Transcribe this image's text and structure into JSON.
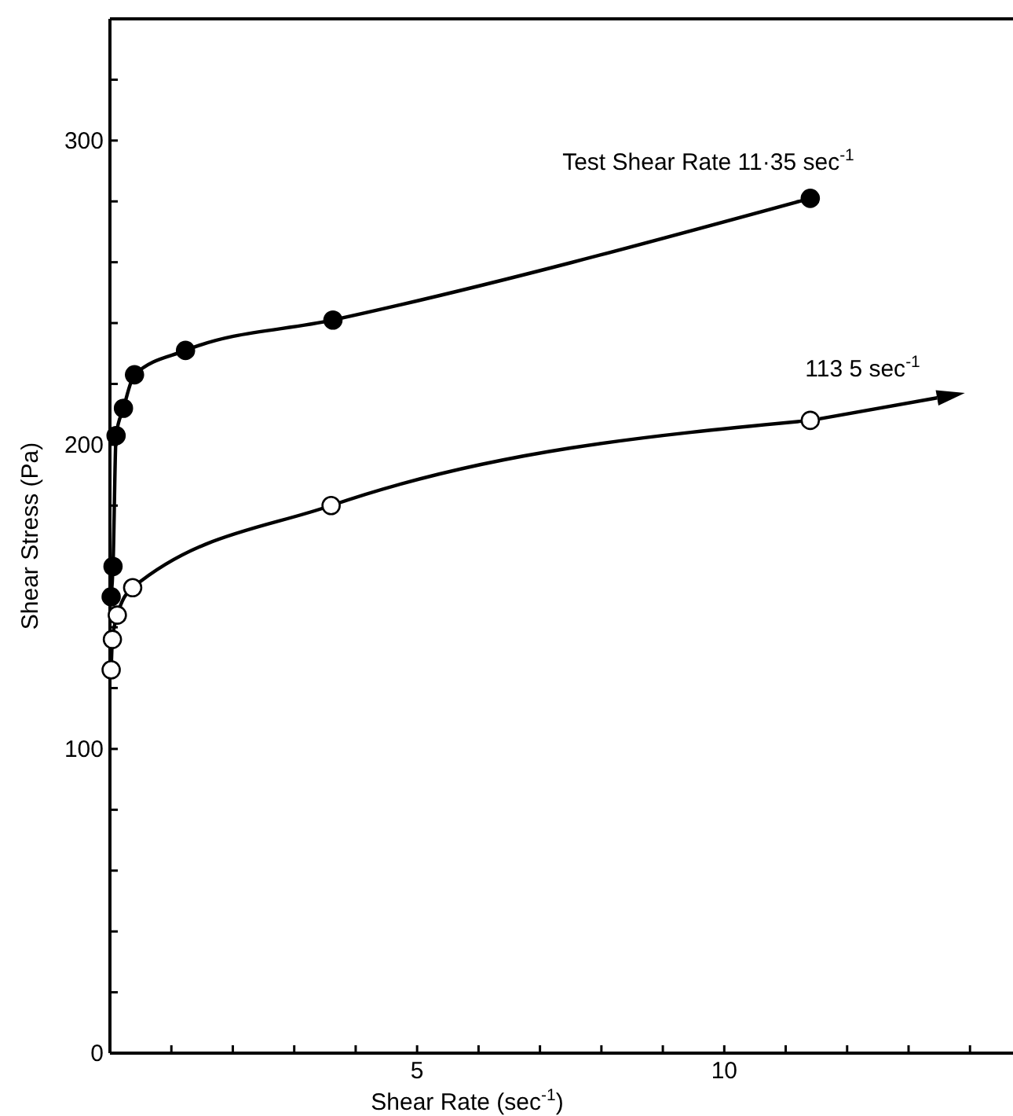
{
  "chart_data": {
    "type": "line",
    "xlabel": "Shear Rate (sec$^{-1}$)",
    "ylabel": "Shear Stress (Pa)",
    "xlim": [
      0,
      14.7
    ],
    "ylim": [
      0,
      340
    ],
    "xticks": [
      {
        "value": 1,
        "label": null
      },
      {
        "value": 2,
        "label": null
      },
      {
        "value": 3,
        "label": null
      },
      {
        "value": 4,
        "label": null
      },
      5,
      {
        "value": 6,
        "label": null
      },
      {
        "value": 7,
        "label": null
      },
      {
        "value": 8,
        "label": null
      },
      {
        "value": 9,
        "label": null
      },
      10,
      {
        "value": 11,
        "label": null
      },
      {
        "value": 12,
        "label": null
      },
      {
        "value": 13,
        "label": null
      },
      {
        "value": 14,
        "label": null
      }
    ],
    "yticks": [
      0,
      {
        "value": 20,
        "label": null
      },
      {
        "value": 40,
        "label": null
      },
      {
        "value": 60,
        "label": null
      },
      {
        "value": 80,
        "label": null
      },
      100,
      {
        "value": 120,
        "label": null
      },
      {
        "value": 140,
        "label": null
      },
      {
        "value": 160,
        "label": null
      },
      {
        "value": 180,
        "label": null
      },
      200,
      {
        "value": 220,
        "label": null
      },
      {
        "value": 240,
        "label": null
      },
      {
        "value": 260,
        "label": null
      },
      {
        "value": 280,
        "label": null
      },
      300,
      {
        "value": 320,
        "label": null
      }
    ],
    "grid": false,
    "marker": "circle",
    "line_style": "solid",
    "series": [
      {
        "name": "Test Shear Rate 11·35 sec$^{-1}$",
        "color": "#000000",
        "x": [
          0.02,
          0.05,
          0.1,
          0.22,
          0.4,
          1.23,
          3.63,
          11.4
        ],
        "values": [
          150,
          160,
          203,
          212,
          223,
          231,
          241,
          281
        ]
      },
      {
        "name": "113 5 sec$^{-1}$",
        "color": "#000000",
        "x": [
          0.02,
          0.04,
          0.12,
          0.37,
          3.6,
          11.4
        ],
        "values": [
          126,
          136,
          144,
          153,
          180,
          208
        ]
      }
    ]
  }
}
